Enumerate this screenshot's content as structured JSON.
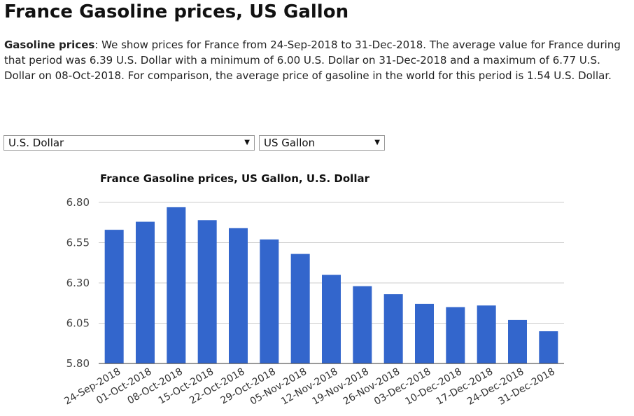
{
  "page": {
    "title": "France Gasoline prices, US Gallon",
    "desc_bold": "Gasoline prices",
    "desc_text": ": We show prices for France from 24-Sep-2018 to 31-Dec-2018. The average value for France during that period was 6.39 U.S. Dollar with a minimum of 6.00 U.S. Dollar on 31-Dec-2018 and a maximum of 6.77 U.S. Dollar on 08-Oct-2018. For comparison, the average price of gasoline in the world for this period is 1.54 U.S. Dollar."
  },
  "controls": {
    "currency_selected": "U.S. Dollar",
    "unit_selected": "US Gallon",
    "arrow_icon": "triangle-down-icon"
  },
  "colors": {
    "bar": "#3366cc",
    "grid": "#cccccc",
    "axis": "#333333"
  },
  "chart_data": {
    "type": "bar",
    "title": "France Gasoline prices, US Gallon, U.S. Dollar",
    "xlabel": "",
    "ylabel": "",
    "ylim": [
      5.8,
      6.8
    ],
    "yticks": [
      "6.80",
      "6.55",
      "6.30",
      "6.05",
      "5.80"
    ],
    "grid": true,
    "legend": "none",
    "categories": [
      "24-Sep-2018",
      "01-Oct-2018",
      "08-Oct-2018",
      "15-Oct-2018",
      "22-Oct-2018",
      "29-Oct-2018",
      "05-Nov-2018",
      "12-Nov-2018",
      "19-Nov-2018",
      "26-Nov-2018",
      "03-Dec-2018",
      "10-Dec-2018",
      "17-Dec-2018",
      "24-Dec-2018",
      "31-Dec-2018"
    ],
    "values": [
      6.63,
      6.68,
      6.77,
      6.69,
      6.64,
      6.57,
      6.48,
      6.35,
      6.28,
      6.23,
      6.17,
      6.15,
      6.16,
      6.07,
      6.0
    ]
  }
}
